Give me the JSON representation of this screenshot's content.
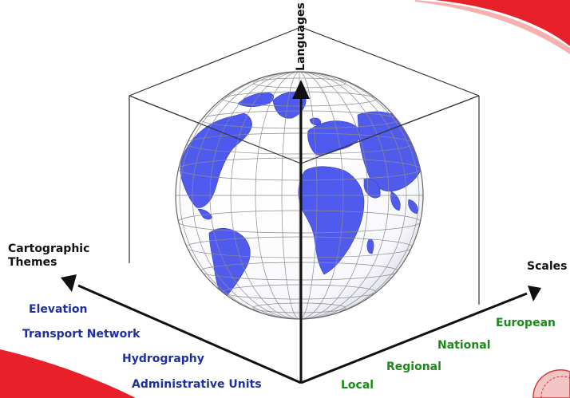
{
  "axes": {
    "languages": "Languages",
    "themes_title": [
      "Cartographic",
      "Themes"
    ],
    "scales_title": "Scales"
  },
  "themes": [
    "Elevation",
    "Transport Network",
    "Hydrography",
    "Administrative Units"
  ],
  "scales": [
    "Local",
    "Regional",
    "National",
    "European"
  ],
  "colors": {
    "globe_land": "#4a55ee",
    "globe_ocean": "#ffffff",
    "theme_text": "#1f2f9e",
    "scale_text": "#1b8a1b",
    "accent": "#e8202a"
  }
}
